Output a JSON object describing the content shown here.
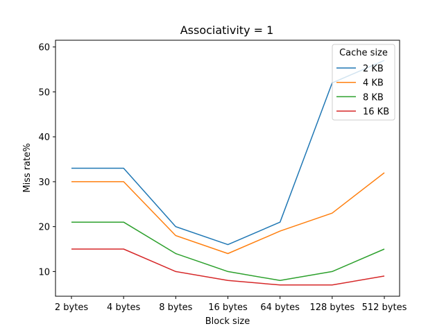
{
  "chart_data": {
    "type": "line",
    "title": "Associativity = 1",
    "xlabel": "Block size",
    "ylabel": "Miss rate%",
    "categories": [
      "2 bytes",
      "4 bytes",
      "8 bytes",
      "16 bytes",
      "64 bytes",
      "128 bytes",
      "512 bytes"
    ],
    "ylim": [
      4.5,
      61.5
    ],
    "yticks": [
      10,
      20,
      30,
      40,
      50,
      60
    ],
    "grid": false,
    "legend": {
      "title": "Cache size",
      "placement": "top-right"
    },
    "series": [
      {
        "name": "2 KB",
        "color": "#1f77b4",
        "values": [
          33,
          33,
          20,
          16,
          21,
          52,
          57
        ]
      },
      {
        "name": "4 KB",
        "color": "#ff7f0e",
        "values": [
          30,
          30,
          18,
          14,
          19,
          23,
          32
        ]
      },
      {
        "name": "8 KB",
        "color": "#2ca02c",
        "values": [
          21,
          21,
          14,
          10,
          8,
          10,
          15
        ]
      },
      {
        "name": "16 KB",
        "color": "#d62728",
        "values": [
          15,
          15,
          10,
          8,
          7,
          7,
          9
        ]
      }
    ]
  }
}
